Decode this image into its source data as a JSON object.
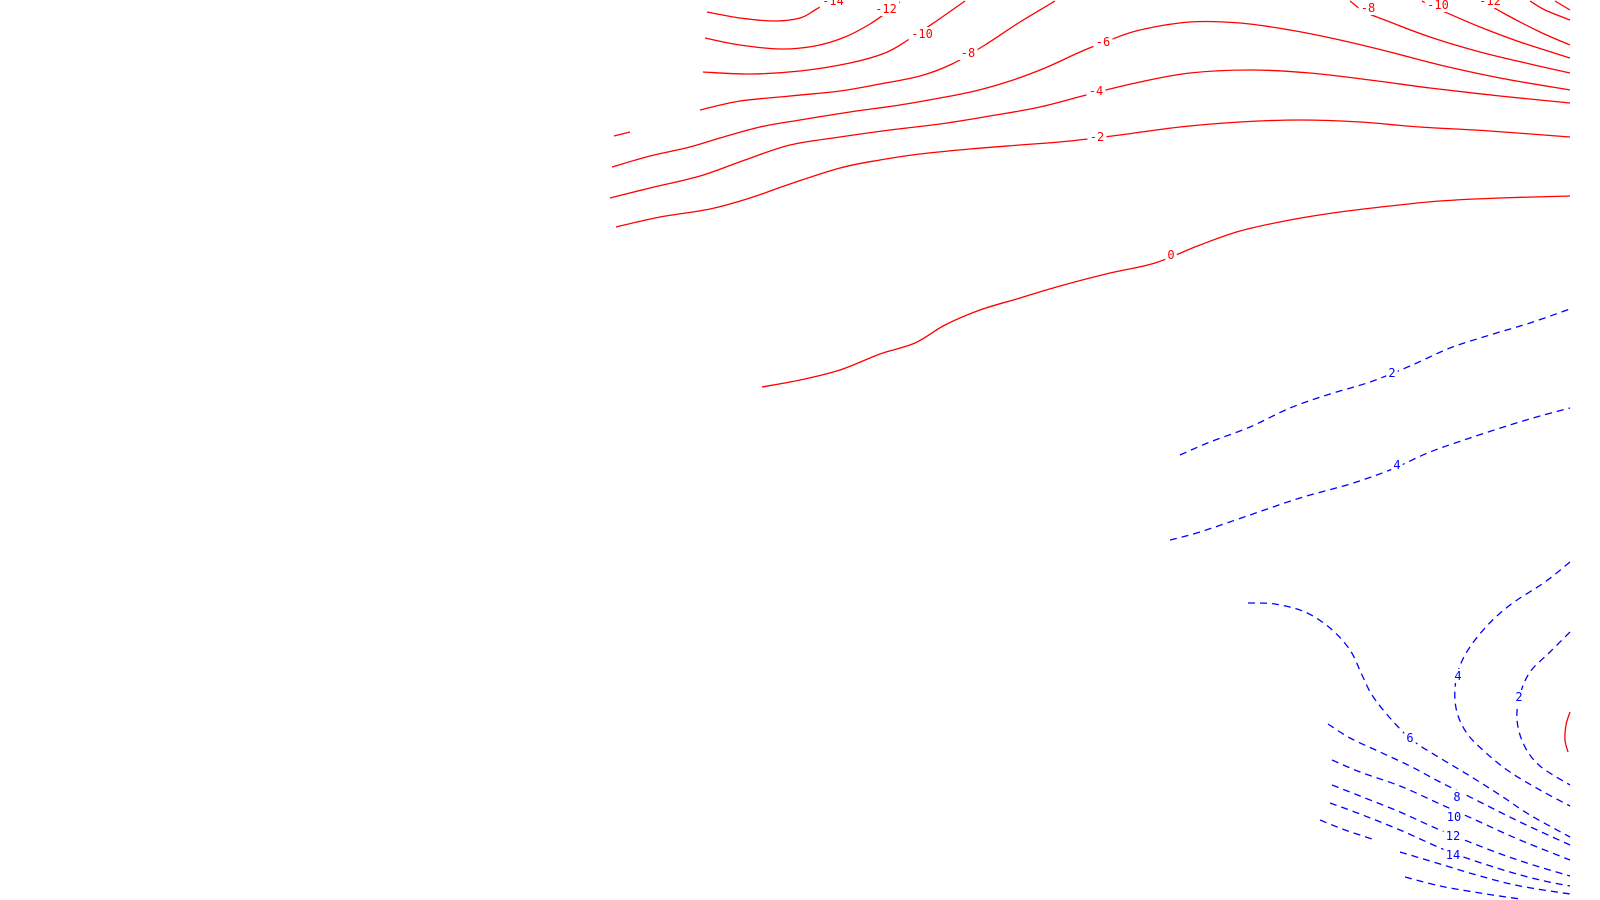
{
  "chart_data": {
    "type": "contour",
    "title": "",
    "xlabel": "",
    "ylabel": "",
    "legend": "none",
    "grid": false,
    "styles": {
      "negative": {
        "color": "#ff0000",
        "line": "solid"
      },
      "positive": {
        "color": "#0000ff",
        "line": "dashed"
      }
    },
    "levels": [
      -14,
      -12,
      -10,
      -8,
      -6,
      -4,
      -2,
      0,
      2,
      4,
      6,
      8,
      10,
      12,
      14
    ],
    "level_labels": [
      {
        "level": -14,
        "text": "-14"
      },
      {
        "level": -12,
        "text": "-12"
      },
      {
        "level": -10,
        "text": "-10"
      },
      {
        "level": -8,
        "text": "-8"
      },
      {
        "level": -6,
        "text": "-6"
      },
      {
        "level": -4,
        "text": "-4"
      },
      {
        "level": -2,
        "text": "-2"
      },
      {
        "level": -8,
        "text": "-8"
      },
      {
        "level": -10,
        "text": "-10"
      },
      {
        "level": -12,
        "text": "-12"
      },
      {
        "level": 0,
        "text": "0"
      },
      {
        "level": 2,
        "text": "2"
      },
      {
        "level": 4,
        "text": "4"
      },
      {
        "level": 4,
        "text": "4"
      },
      {
        "level": 2,
        "text": "2"
      },
      {
        "level": 6,
        "text": "6"
      },
      {
        "level": 8,
        "text": "8"
      },
      {
        "level": 10,
        "text": "10"
      },
      {
        "level": 12,
        "text": "12"
      },
      {
        "level": 14,
        "text": "14"
      }
    ]
  }
}
